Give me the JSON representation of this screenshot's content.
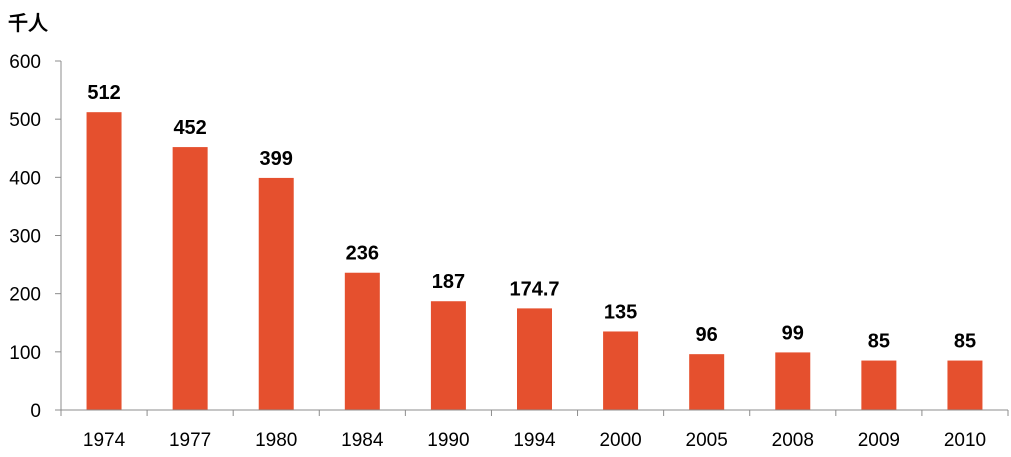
{
  "chart_data": {
    "type": "bar",
    "unit_label": "千人",
    "categories": [
      "1974",
      "1977",
      "1980",
      "1984",
      "1990",
      "1994",
      "2000",
      "2005",
      "2008",
      "2009",
      "2010"
    ],
    "values": [
      512,
      452,
      399,
      236,
      187,
      174.7,
      135,
      96,
      99,
      85,
      85
    ],
    "value_labels": [
      "512",
      "452",
      "399",
      "236",
      "187",
      "174.7",
      "135",
      "96",
      "99",
      "85",
      "85"
    ],
    "ylim": [
      0,
      600
    ],
    "yticks": [
      0,
      100,
      200,
      300,
      400,
      500,
      600
    ],
    "ytick_labels": [
      "0",
      "100",
      "200",
      "300",
      "400",
      "500",
      "600"
    ],
    "bar_color": "#e5502e",
    "grid": false,
    "legend": "none"
  }
}
